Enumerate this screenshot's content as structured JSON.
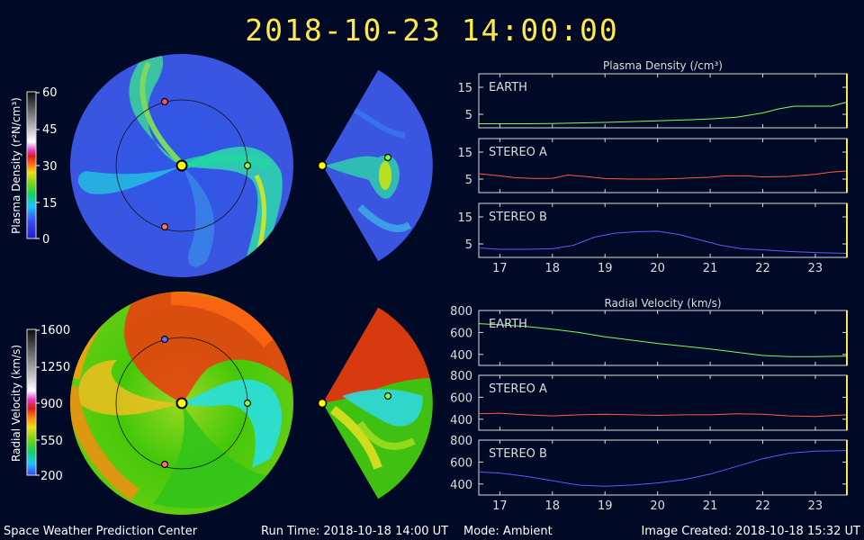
{
  "title": "2018-10-23  14:00:00",
  "footer": {
    "center": "Space Weather Prediction Center",
    "run_time": "Run Time: 2018-10-18 14:00 UT",
    "mode": "Mode: Ambient",
    "image_created": "Image Created: 2018-10-18 15:32 UT"
  },
  "colorbars": {
    "density": {
      "label": "Plasma Density (r²N/cm³)",
      "ticks": [
        "60",
        "45",
        "30",
        "15",
        "0"
      ]
    },
    "velocity": {
      "label": "Radial Velocity (km/s)",
      "ticks": [
        "1600",
        "1250",
        "900",
        "550",
        "200"
      ]
    }
  },
  "colors": {
    "background": "#000926",
    "title": "#ffe94a",
    "earth_line": "#7cff5a",
    "stereo_a_line": "#ff5a3c",
    "stereo_b_line": "#5a5aff",
    "time_marker": "#ffe94a"
  },
  "chart_data": [
    {
      "type": "line",
      "title": "Plasma Density (/cm³)",
      "x_ticks": [
        "17",
        "18",
        "19",
        "20",
        "21",
        "22",
        "23"
      ],
      "xlim": [
        16.6,
        23.6
      ],
      "panels": [
        {
          "name": "EARTH",
          "color": "#7cff5a",
          "ylim": [
            0,
            20
          ],
          "y_ticks": [
            "15",
            "5"
          ],
          "x": [
            16.6,
            17,
            17.5,
            18,
            18.5,
            19,
            19.5,
            20,
            20.5,
            21,
            21.5,
            22,
            22.3,
            22.6,
            23,
            23.3,
            23.6
          ],
          "values": [
            1.5,
            1.5,
            1.5,
            1.6,
            1.8,
            2,
            2.3,
            2.6,
            2.9,
            3.3,
            3.9,
            5.5,
            7,
            8,
            8,
            8,
            9.5
          ]
        },
        {
          "name": "STEREO A",
          "color": "#ff5a3c",
          "ylim": [
            0,
            20
          ],
          "y_ticks": [
            "15",
            "5"
          ],
          "x": [
            16.6,
            17,
            17.3,
            17.7,
            18,
            18.3,
            18.6,
            19,
            19.5,
            20,
            20.5,
            21,
            21.3,
            21.7,
            22,
            22.5,
            23,
            23.3,
            23.6
          ],
          "values": [
            7,
            6.2,
            5.5,
            5.2,
            5.3,
            6.5,
            6,
            5.2,
            5,
            5,
            5.3,
            5.7,
            6.2,
            6.2,
            5.8,
            6,
            6.8,
            7.6,
            8
          ]
        },
        {
          "name": "STEREO B",
          "color": "#5a5aff",
          "ylim": [
            0,
            20
          ],
          "y_ticks": [
            "15",
            "5"
          ],
          "x": [
            16.6,
            17,
            17.5,
            18,
            18.4,
            18.8,
            19.2,
            19.6,
            20,
            20.4,
            20.8,
            21.2,
            21.6,
            22,
            22.5,
            23,
            23.6
          ],
          "values": [
            3.5,
            3,
            3,
            3.2,
            4.5,
            7.5,
            9,
            9.5,
            9.7,
            8.5,
            6.5,
            4.5,
            3.2,
            2.8,
            2.2,
            1.8,
            1.5
          ]
        }
      ]
    },
    {
      "type": "line",
      "title": "Radial Velocity (km/s)",
      "x_ticks": [
        "17",
        "18",
        "19",
        "20",
        "21",
        "22",
        "23"
      ],
      "xlim": [
        16.6,
        23.6
      ],
      "panels": [
        {
          "name": "EARTH",
          "color": "#7cff5a",
          "ylim": [
            300,
            800
          ],
          "y_ticks": [
            "800",
            "600",
            "400"
          ],
          "x": [
            16.6,
            17,
            17.5,
            18,
            18.5,
            19,
            19.5,
            20,
            20.5,
            21,
            21.5,
            22,
            22.5,
            23,
            23.6
          ],
          "values": [
            680,
            670,
            655,
            630,
            600,
            560,
            530,
            500,
            475,
            450,
            420,
            390,
            380,
            380,
            385
          ]
        },
        {
          "name": "STEREO A",
          "color": "#ff5a3c",
          "ylim": [
            300,
            800
          ],
          "y_ticks": [
            "800",
            "600",
            "400"
          ],
          "x": [
            16.6,
            17,
            17.5,
            18,
            18.5,
            19,
            19.5,
            20,
            20.5,
            21,
            21.5,
            22,
            22.5,
            23,
            23.6
          ],
          "values": [
            450,
            455,
            440,
            430,
            440,
            445,
            440,
            435,
            440,
            440,
            450,
            445,
            430,
            425,
            440
          ]
        },
        {
          "name": "STEREO B",
          "color": "#5a5aff",
          "ylim": [
            300,
            800
          ],
          "y_ticks": [
            "800",
            "600",
            "400"
          ],
          "x": [
            16.6,
            17,
            17.5,
            18,
            18.5,
            19,
            19.5,
            20,
            20.5,
            21,
            21.5,
            22,
            22.5,
            23,
            23.6
          ],
          "values": [
            510,
            500,
            470,
            430,
            390,
            380,
            390,
            410,
            440,
            490,
            560,
            630,
            680,
            700,
            705
          ]
        }
      ]
    }
  ]
}
